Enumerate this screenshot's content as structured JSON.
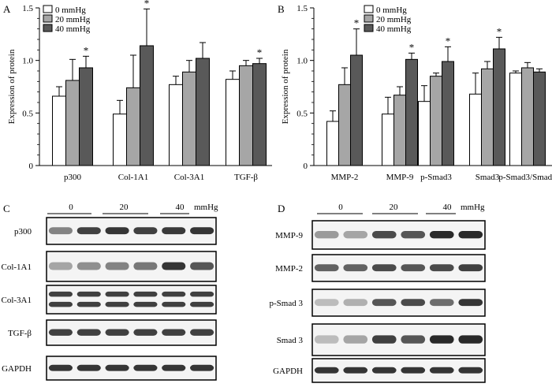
{
  "chart_data": [
    {
      "panel": "A",
      "type": "bar",
      "ylabel": "Expression of protein",
      "ylim": [
        0,
        1.5
      ],
      "yticks": [
        "0",
        "0.5",
        "1.0",
        "1.5"
      ],
      "categories": [
        "p300",
        "Col-1A1",
        "Col-3A1",
        "TGF-β"
      ],
      "legend_position": "top-left",
      "series": [
        {
          "name": "0 mmHg",
          "color": "#ffffff",
          "values": [
            0.66,
            0.49,
            0.77,
            0.82
          ],
          "errors": [
            0.09,
            0.13,
            0.08,
            0.08
          ]
        },
        {
          "name": "20 mmHg",
          "color": "#a6a6a6",
          "values": [
            0.81,
            0.74,
            0.89,
            0.95
          ],
          "errors": [
            0.2,
            0.31,
            0.11,
            0.05
          ]
        },
        {
          "name": "40 mmHg",
          "color": "#595959",
          "values": [
            0.93,
            1.14,
            1.02,
            0.97
          ],
          "errors": [
            0.11,
            0.35,
            0.15,
            0.05
          ]
        }
      ],
      "annotations": [
        {
          "category": "p300",
          "series": "40 mmHg",
          "text": "*"
        },
        {
          "category": "Col-1A1",
          "series": "40 mmHg",
          "text": "*"
        },
        {
          "category": "TGF-β",
          "series": "40 mmHg",
          "text": "*"
        }
      ]
    },
    {
      "panel": "B",
      "type": "bar",
      "ylabel": "Expression of protein",
      "ylim": [
        0,
        1.5
      ],
      "yticks": [
        "0",
        "0.5",
        "1.0",
        "1.5"
      ],
      "categories": [
        "MMP-2",
        "MMP-9",
        "p-Smad3",
        "Smad3",
        "p-Smad3/Smad3"
      ],
      "legend_position": "top-center",
      "series": [
        {
          "name": "0 mmHg",
          "color": "#ffffff",
          "values": [
            0.42,
            0.49,
            0.61,
            0.68,
            0.88
          ],
          "errors": [
            0.1,
            0.16,
            0.15,
            0.2,
            0.02
          ]
        },
        {
          "name": "20 mmHg",
          "color": "#a6a6a6",
          "values": [
            0.77,
            0.67,
            0.85,
            0.92,
            0.93
          ],
          "errors": [
            0.16,
            0.08,
            0.03,
            0.07,
            0.05
          ]
        },
        {
          "name": "40 mmHg",
          "color": "#595959",
          "values": [
            1.05,
            1.01,
            0.99,
            1.11,
            0.89
          ],
          "errors": [
            0.25,
            0.06,
            0.14,
            0.11,
            0.03
          ]
        }
      ],
      "annotations": [
        {
          "category": "MMP-2",
          "series": "40 mmHg",
          "text": "*"
        },
        {
          "category": "MMP-9",
          "series": "40 mmHg",
          "text": "*"
        },
        {
          "category": "p-Smad3",
          "series": "40 mmHg",
          "text": "*"
        },
        {
          "category": "Smad3",
          "series": "40 mmHg",
          "text": "*"
        }
      ]
    }
  ],
  "blots": [
    {
      "panel": "C",
      "groups": [
        "0",
        "20",
        "40"
      ],
      "unit": "mmHg",
      "rows": [
        {
          "label": "p300",
          "intensity": [
            0.55,
            0.85,
            0.9,
            0.85,
            0.88,
            0.9
          ]
        },
        {
          "label": "Col-1A1",
          "intensity": [
            0.4,
            0.5,
            0.55,
            0.6,
            0.9,
            0.75
          ]
        },
        {
          "label": "Col-3A1",
          "intensity": [
            0.85,
            0.85,
            0.85,
            0.85,
            0.85,
            0.85
          ],
          "double": true
        },
        {
          "label": "TGF-β",
          "intensity": [
            0.85,
            0.85,
            0.85,
            0.85,
            0.85,
            0.85
          ]
        },
        {
          "label": "GAPDH",
          "intensity": [
            0.9,
            0.9,
            0.9,
            0.9,
            0.9,
            0.9
          ]
        }
      ]
    },
    {
      "panel": "D",
      "groups": [
        "0",
        "20",
        "40"
      ],
      "unit": "mmHg",
      "rows": [
        {
          "label": "MMP-9",
          "intensity": [
            0.45,
            0.4,
            0.8,
            0.75,
            0.95,
            0.95
          ]
        },
        {
          "label": "MMP-2",
          "intensity": [
            0.7,
            0.7,
            0.8,
            0.75,
            0.8,
            0.85
          ]
        },
        {
          "label": "p-Smad 3",
          "intensity": [
            0.3,
            0.35,
            0.75,
            0.8,
            0.65,
            0.9
          ]
        },
        {
          "label": "Smad 3",
          "intensity": [
            0.3,
            0.4,
            0.85,
            0.75,
            0.95,
            0.95
          ]
        },
        {
          "label": "GAPDH",
          "intensity": [
            0.9,
            0.9,
            0.9,
            0.9,
            0.9,
            0.9
          ]
        }
      ]
    }
  ]
}
